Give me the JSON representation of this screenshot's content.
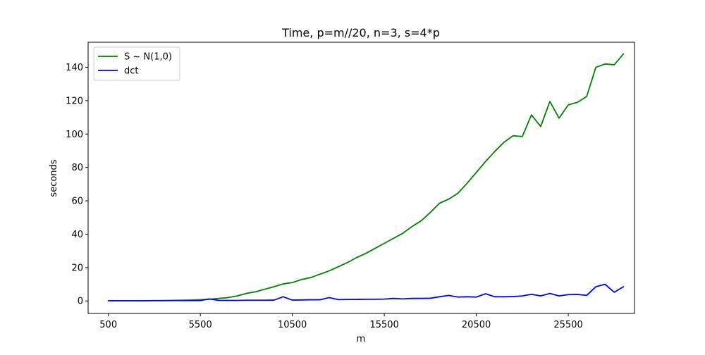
{
  "chart_data": {
    "type": "line",
    "title": "Time, p=m//20, n=3, s=4*p",
    "xlabel": "m",
    "ylabel": "seconds",
    "xlim": [
      -600,
      29100
    ],
    "ylim": [
      -7.5,
      155
    ],
    "xticks": [
      500,
      5500,
      10500,
      15500,
      20500,
      25500
    ],
    "yticks": [
      0,
      20,
      40,
      60,
      80,
      100,
      120,
      140
    ],
    "x_tick_labels": [
      "500",
      "5500",
      "10500",
      "15500",
      "20500",
      "25500"
    ],
    "y_tick_labels": [
      "0",
      "20",
      "40",
      "60",
      "80",
      "100",
      "120",
      "140"
    ],
    "legend_position": "upper-left",
    "grid": false,
    "x": [
      500,
      1000,
      1500,
      2000,
      2500,
      3000,
      3500,
      4000,
      4500,
      5000,
      5500,
      6000,
      6500,
      7000,
      7500,
      8000,
      8500,
      9000,
      9500,
      10000,
      10500,
      11000,
      11500,
      12000,
      12500,
      13000,
      13500,
      14000,
      14500,
      15000,
      15500,
      16000,
      16500,
      17000,
      17500,
      18000,
      18500,
      19000,
      19500,
      20000,
      20500,
      21000,
      21500,
      22000,
      22500,
      23000,
      23500,
      24000,
      24500,
      25000,
      25500,
      26000,
      26500,
      27000,
      27500,
      28000,
      28500
    ],
    "series": [
      {
        "name": "S ~ N(1,0)",
        "color": "#008000",
        "values": [
          0.1,
          0.1,
          0.1,
          0.1,
          0.15,
          0.2,
          0.25,
          0.3,
          0.4,
          0.5,
          0.7,
          1.0,
          1.5,
          2.0,
          3.0,
          4.5,
          5.5,
          7.0,
          8.5,
          10.2,
          11.0,
          12.8,
          14.0,
          16.0,
          18.0,
          20.5,
          23.0,
          26.0,
          28.5,
          31.5,
          34.5,
          37.5,
          40.5,
          44.5,
          48.0,
          53.0,
          58.5,
          61.0,
          64.5,
          70.5,
          77.0,
          83.5,
          89.5,
          95.0,
          99.0,
          98.5,
          111.5,
          104.5,
          119.5,
          109.5,
          117.5,
          119.0,
          122.5,
          140.0,
          142.0,
          141.5,
          148.0
        ]
      },
      {
        "name": "dct",
        "color": "#0000ff",
        "values": [
          0.1,
          0.1,
          0.1,
          0.1,
          0.1,
          0.15,
          0.15,
          0.2,
          0.2,
          0.2,
          0.2,
          1.2,
          0.3,
          0.3,
          0.3,
          0.4,
          0.4,
          0.4,
          0.5,
          2.5,
          0.5,
          0.6,
          0.7,
          0.7,
          2.0,
          0.8,
          0.9,
          0.9,
          1.0,
          1.0,
          1.1,
          1.5,
          1.2,
          1.5,
          1.5,
          1.6,
          2.5,
          3.3,
          2.3,
          2.5,
          2.3,
          4.3,
          2.5,
          2.5,
          2.6,
          3.0,
          4.0,
          3.0,
          4.5,
          3.0,
          3.8,
          3.9,
          3.3,
          8.5,
          10.0,
          5.2,
          8.5
        ]
      }
    ]
  }
}
